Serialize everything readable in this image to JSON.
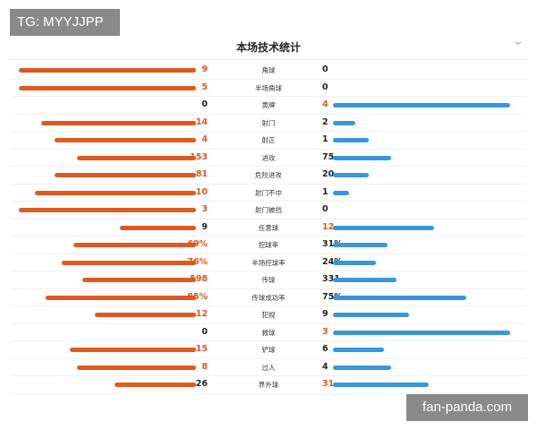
{
  "watermarks": {
    "top": "TG: MYYJJPP",
    "bottom": "fan-panda.com"
  },
  "header": {
    "title": "本场技术统计",
    "collapse_icon": "chevron-down-icon"
  },
  "colors": {
    "home_bar": "#e0591f",
    "away_bar": "#3897db",
    "highlight_text": "#e0591f"
  },
  "stats": [
    {
      "label": "角球",
      "home": "9",
      "away": "0",
      "home_ratio": 1.0,
      "away_ratio": 0.0,
      "lead": "home"
    },
    {
      "label": "半场角球",
      "home": "5",
      "away": "0",
      "home_ratio": 1.0,
      "away_ratio": 0.0,
      "lead": "home"
    },
    {
      "label": "黄牌",
      "home": "0",
      "away": "4",
      "home_ratio": 0.0,
      "away_ratio": 1.0,
      "lead": "away"
    },
    {
      "label": "射门",
      "home": "14",
      "away": "2",
      "home_ratio": 0.875,
      "away_ratio": 0.125,
      "lead": "home"
    },
    {
      "label": "射正",
      "home": "4",
      "away": "1",
      "home_ratio": 0.8,
      "away_ratio": 0.2,
      "lead": "home"
    },
    {
      "label": "进攻",
      "home": "153",
      "away": "75",
      "home_ratio": 0.67,
      "away_ratio": 0.33,
      "lead": "home"
    },
    {
      "label": "危险进攻",
      "home": "81",
      "away": "20",
      "home_ratio": 0.8,
      "away_ratio": 0.2,
      "lead": "home"
    },
    {
      "label": "射门不中",
      "home": "10",
      "away": "1",
      "home_ratio": 0.91,
      "away_ratio": 0.09,
      "lead": "home"
    },
    {
      "label": "射门被挡",
      "home": "3",
      "away": "0",
      "home_ratio": 1.0,
      "away_ratio": 0.0,
      "lead": "home"
    },
    {
      "label": "任意球",
      "home": "9",
      "away": "12",
      "home_ratio": 0.43,
      "away_ratio": 0.57,
      "lead": "away"
    },
    {
      "label": "控球率",
      "home": "69%",
      "away": "31%",
      "home_ratio": 0.69,
      "away_ratio": 0.31,
      "lead": "home"
    },
    {
      "label": "半场控球率",
      "home": "76%",
      "away": "24%",
      "home_ratio": 0.76,
      "away_ratio": 0.24,
      "lead": "home"
    },
    {
      "label": "传球",
      "home": "598",
      "away": "331",
      "home_ratio": 0.64,
      "away_ratio": 0.36,
      "lead": "home"
    },
    {
      "label": "传球成功率",
      "home": "85%",
      "away": "75%",
      "home_ratio": 0.85,
      "away_ratio": 0.75,
      "lead": "home"
    },
    {
      "label": "犯规",
      "home": "12",
      "away": "9",
      "home_ratio": 0.57,
      "away_ratio": 0.43,
      "lead": "home"
    },
    {
      "label": "救球",
      "home": "0",
      "away": "3",
      "home_ratio": 0.0,
      "away_ratio": 1.0,
      "lead": "away"
    },
    {
      "label": "铲球",
      "home": "15",
      "away": "6",
      "home_ratio": 0.71,
      "away_ratio": 0.29,
      "lead": "home"
    },
    {
      "label": "过人",
      "home": "8",
      "away": "4",
      "home_ratio": 0.67,
      "away_ratio": 0.33,
      "lead": "home"
    },
    {
      "label": "界外球",
      "home": "26",
      "away": "31",
      "home_ratio": 0.46,
      "away_ratio": 0.54,
      "lead": "away"
    }
  ]
}
